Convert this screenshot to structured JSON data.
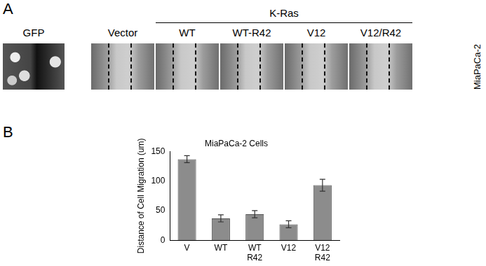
{
  "panel_a": {
    "label": "A",
    "gfp_label": "GFP",
    "group_label": "K-Ras",
    "columns": [
      "Vector",
      "WT",
      "WT-R42",
      "V12",
      "V12/R42"
    ],
    "cell_line": "MiaPaCa-2"
  },
  "panel_b": {
    "label": "B"
  },
  "chart_data": {
    "type": "bar",
    "title": "MiaPaCa-2 Cells",
    "y_label": "Distance of Cell Migration (um)",
    "categories": [
      "V",
      "WT",
      [
        "WT",
        "R42"
      ],
      "V12",
      [
        "V12",
        "R42"
      ]
    ],
    "values": [
      137,
      37,
      44,
      27,
      93
    ],
    "errors": [
      6,
      6,
      6,
      6,
      10
    ],
    "color": "#8c8c8c",
    "ylim": [
      0,
      150
    ],
    "yticks": [
      0,
      50,
      100,
      150
    ],
    "grid": false
  }
}
